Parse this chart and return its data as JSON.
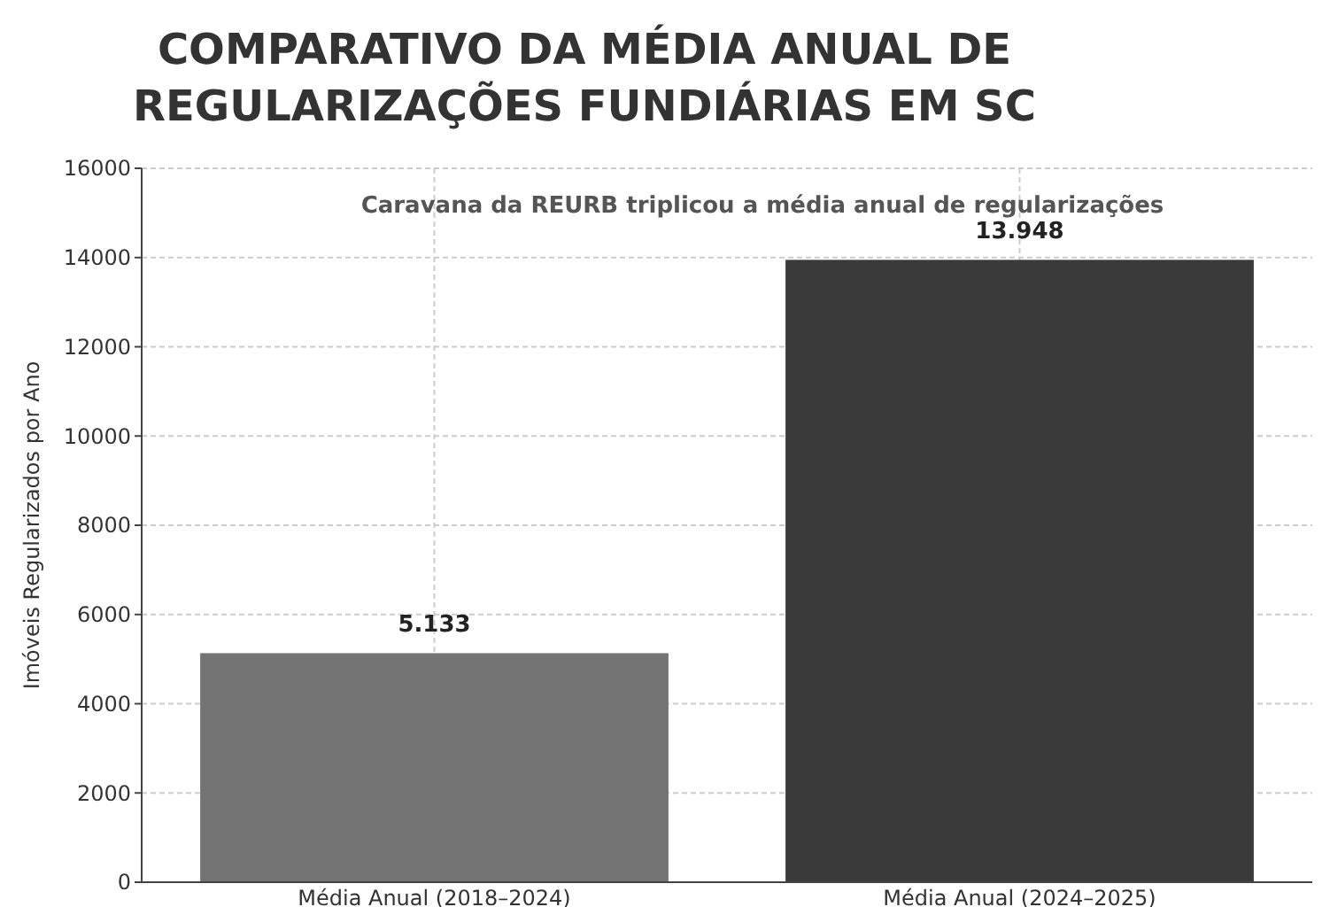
{
  "chart_data": {
    "type": "bar",
    "title": "COMPARATIVO DA MÉDIA ANUAL DE\nREGULARIZAÇÕES FUNDIÁRIAS EM SC",
    "subtitle": "Caravana da REURB triplicou a média anual de regularizações",
    "ylabel": "Imóveis Regularizados por Ano",
    "categories": [
      "Média Anual (2018–2024)",
      "Média Anual (2024–2025)"
    ],
    "values": [
      5133,
      13948
    ],
    "colors": [
      "#737373",
      "#3a3a3a"
    ],
    "value_labels": [
      "5.133",
      "13.948"
    ],
    "ylim": [
      0,
      16000
    ],
    "yticks": [
      0,
      2000,
      4000,
      6000,
      8000,
      10000,
      12000,
      14000,
      16000
    ],
    "grid": true
  }
}
